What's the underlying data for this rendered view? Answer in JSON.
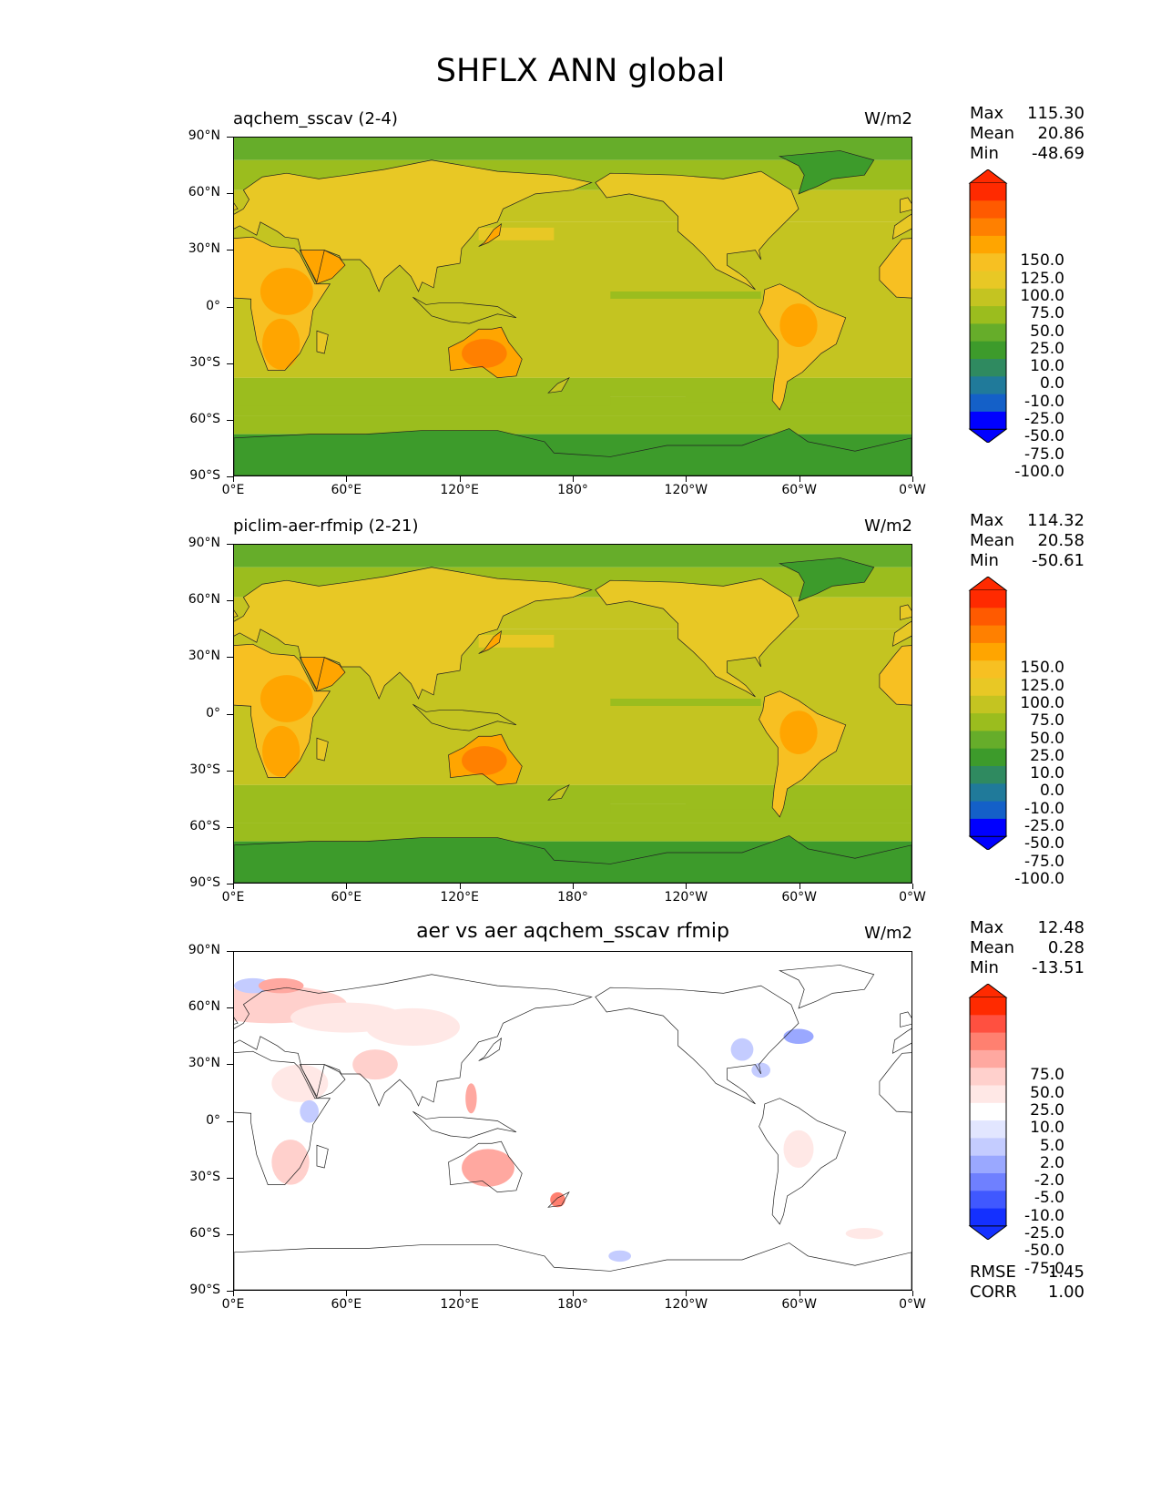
{
  "title": "SHFLX ANN global",
  "panels": [
    {
      "title": "aqchem_sscav (2-4)",
      "units": "W/m2",
      "stats": {
        "max_label": "Max",
        "max": "115.30",
        "mean_label": "Mean",
        "mean": "20.86",
        "min_label": "Min",
        "min": "-48.69"
      },
      "colorbar": [
        "150.0",
        "125.0",
        "100.0",
        "75.0",
        "50.0",
        "25.0",
        "10.0",
        "0.0",
        "-10.0",
        "-25.0",
        "-50.0",
        "-75.0",
        "-100.0"
      ]
    },
    {
      "title": "piclim-aer-rfmip (2-21)",
      "units": "W/m2",
      "stats": {
        "max_label": "Max",
        "max": "114.32",
        "mean_label": "Mean",
        "mean": "20.58",
        "min_label": "Min",
        "min": "-50.61"
      },
      "colorbar": [
        "150.0",
        "125.0",
        "100.0",
        "75.0",
        "50.0",
        "25.0",
        "10.0",
        "0.0",
        "-10.0",
        "-25.0",
        "-50.0",
        "-75.0",
        "-100.0"
      ]
    },
    {
      "title": "aer vs aer aqchem_sscav rfmip",
      "units": "W/m2",
      "stats": {
        "max_label": "Max",
        "max": "12.48",
        "mean_label": "Mean",
        "mean": "0.28",
        "min_label": "Min",
        "min": "-13.51"
      },
      "colorbar": [
        "75.0",
        "50.0",
        "25.0",
        "10.0",
        "5.0",
        "2.0",
        "-2.0",
        "-5.0",
        "-10.0",
        "-25.0",
        "-50.0",
        "-75.0"
      ],
      "rmse_label": "RMSE",
      "rmse": "1.45",
      "corr_label": "CORR",
      "corr": "1.00"
    }
  ],
  "axes": {
    "lat_ticks": [
      "90°N",
      "60°N",
      "30°N",
      "0°",
      "30°S",
      "60°S",
      "90°S"
    ],
    "lon_ticks": [
      "0°E",
      "60°E",
      "120°E",
      "180°",
      "120°W",
      "60°W",
      "0°W"
    ]
  },
  "colors": {
    "field": [
      "#ff2a00",
      "#ff5a00",
      "#ff8000",
      "#ffa500",
      "#f7c022",
      "#e8c825",
      "#c4c421",
      "#9bbd1e",
      "#66ad2a",
      "#3d9b2b",
      "#2f8a60",
      "#207a9a",
      "#1460c8",
      "#0000ff"
    ],
    "diff": [
      "#ff2a00",
      "#ff5040",
      "#ff8070",
      "#ffa8a0",
      "#ffd0cc",
      "#ffe8e6",
      "#ffffff",
      "#e2e6ff",
      "#c4ccff",
      "#9aa8ff",
      "#6f80ff",
      "#4058ff",
      "#1430ff"
    ]
  },
  "chart_data": [
    {
      "type": "heatmap",
      "title": "aqchem_sscav (2-4)",
      "units": "W/m2",
      "xlim": [
        0,
        360
      ],
      "ylim": [
        -90,
        90
      ],
      "levels": [
        -100,
        -75,
        -50,
        -25,
        -10,
        0,
        10,
        25,
        50,
        75,
        100,
        125,
        150
      ],
      "max": 115.3,
      "mean": 20.86,
      "min": -48.69
    },
    {
      "type": "heatmap",
      "title": "piclim-aer-rfmip (2-21)",
      "units": "W/m2",
      "xlim": [
        0,
        360
      ],
      "ylim": [
        -90,
        90
      ],
      "levels": [
        -100,
        -75,
        -50,
        -25,
        -10,
        0,
        10,
        25,
        50,
        75,
        100,
        125,
        150
      ],
      "max": 114.32,
      "mean": 20.58,
      "min": -50.61
    },
    {
      "type": "heatmap",
      "title": "aer vs aer aqchem_sscav rfmip",
      "units": "W/m2",
      "xlim": [
        0,
        360
      ],
      "ylim": [
        -90,
        90
      ],
      "levels": [
        -75,
        -50,
        -25,
        -10,
        -5,
        -2,
        2,
        5,
        10,
        25,
        50,
        75
      ],
      "max": 12.48,
      "mean": 0.28,
      "min": -13.51,
      "rmse": 1.45,
      "corr": 1.0
    }
  ]
}
